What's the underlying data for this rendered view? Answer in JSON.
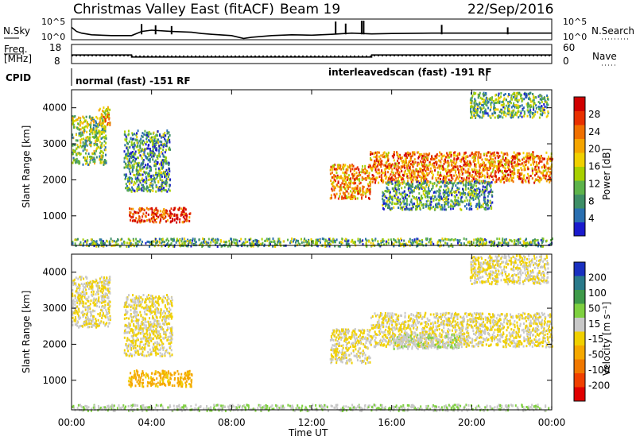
{
  "header": {
    "title": "Christmas Valley East (fitACF)",
    "beam": "Beam 19",
    "date": "22/Sep/2016"
  },
  "panels": {
    "nsky": {
      "left_label": "N.Sky",
      "left_ticks": [
        "10^5",
        "10^0"
      ],
      "right_label": "N.Search",
      "right_ticks": [
        "10^5",
        "10^0"
      ]
    },
    "freq": {
      "left_label_1": "Freq.",
      "left_label_2": "[MHz]",
      "left_ticks": [
        "18",
        "8"
      ],
      "right_label": "Nave",
      "right_ticks": [
        "60",
        "0"
      ]
    },
    "cpid": {
      "label": "CPID",
      "mode_1": "normal (fast) -151 RF",
      "mode_2": "interleavedscan (fast) -191 RF"
    }
  },
  "colors": {
    "power_scale": [
      "#1a1acd",
      "#2a6fb0",
      "#3e8e66",
      "#5db34a",
      "#a8d000",
      "#f0d000",
      "#f5a500",
      "#f07000",
      "#e83000",
      "#d00000"
    ],
    "velocity_scale": [
      "#e00000",
      "#f04000",
      "#f07800",
      "#f5a800",
      "#f0d000",
      "#c8c8c8",
      "#7ed040",
      "#3e9a4a",
      "#2a7a8a",
      "#1a30c0"
    ]
  },
  "chart_data": [
    {
      "type": "line",
      "name": "N.Sky",
      "x_unit": "hours UT",
      "x": [
        0,
        0.25,
        0.5,
        1,
        2,
        3,
        3.5,
        4,
        5,
        6,
        6.5,
        7,
        8,
        8.6,
        9,
        10,
        11,
        12,
        13,
        14,
        15,
        16,
        18,
        20,
        22,
        24
      ],
      "y_log10": [
        3.0,
        2.0,
        1.6,
        1.2,
        1.0,
        1.0,
        2.0,
        2.3,
        2.0,
        1.8,
        1.5,
        1.3,
        1.0,
        0.3,
        0.6,
        1.0,
        1.2,
        1.1,
        1.3,
        1.6,
        1.4,
        1.5,
        1.6,
        1.6,
        1.6,
        1.6
      ],
      "ylim": [
        0,
        5
      ]
    },
    {
      "type": "line",
      "name": "Freq.",
      "x": [
        0,
        3,
        3,
        15,
        15,
        24
      ],
      "y": [
        12.5,
        12.5,
        11.4,
        11.4,
        12.5,
        12.5
      ],
      "ylim": [
        8,
        18
      ]
    },
    {
      "type": "line",
      "name": "Nave",
      "x": [
        0,
        24
      ],
      "y": [
        24,
        24
      ],
      "ylim": [
        0,
        60
      ]
    },
    {
      "type": "scatter",
      "panel": "power",
      "xlabel": "",
      "ylabel": "Slant Range [km]",
      "x_ticks": [
        "00:00",
        "04:00",
        "08:00",
        "12:00",
        "16:00",
        "20:00",
        "00:00"
      ],
      "y_ticks": [
        1000,
        2000,
        3000,
        4000
      ],
      "xlim": [
        0,
        24
      ],
      "ylim": [
        180,
        4500
      ],
      "colorbar": {
        "label": "Power [dB]",
        "ticks": [
          "4",
          "8",
          "12",
          "16",
          "20",
          "24",
          "28"
        ],
        "range": [
          0,
          30
        ]
      },
      "regions": [
        {
          "t0": 0.0,
          "t1": 1.7,
          "r0": 2450,
          "r1": 3800,
          "value": 12
        },
        {
          "t0": 1.3,
          "t1": 1.9,
          "r0": 3500,
          "r1": 4050,
          "value": 18
        },
        {
          "t0": 2.6,
          "t1": 4.9,
          "r0": 1700,
          "r1": 3400,
          "value": 8
        },
        {
          "t0": 2.8,
          "t1": 5.9,
          "r0": 850,
          "r1": 1250,
          "value": 26
        },
        {
          "t0": 12.9,
          "t1": 14.9,
          "r0": 1500,
          "r1": 2450,
          "value": 20
        },
        {
          "t0": 14.9,
          "t1": 24.0,
          "r0": 1950,
          "r1": 2800,
          "value": 22
        },
        {
          "t0": 15.5,
          "t1": 21.0,
          "r0": 1200,
          "r1": 2000,
          "value": 8
        },
        {
          "t0": 19.9,
          "t1": 23.8,
          "r0": 3750,
          "r1": 4450,
          "value": 10
        },
        {
          "t0": 0.0,
          "t1": 24.0,
          "r0": 180,
          "r1": 400,
          "value": 10
        }
      ]
    },
    {
      "type": "scatter",
      "panel": "velocity",
      "xlabel": "Time UT",
      "ylabel": "Slant Range [km]",
      "x_ticks": [
        "00:00",
        "04:00",
        "08:00",
        "12:00",
        "16:00",
        "20:00",
        "00:00"
      ],
      "y_ticks": [
        1000,
        2000,
        3000,
        4000
      ],
      "xlim": [
        0,
        24
      ],
      "ylim": [
        180,
        4500
      ],
      "colorbar": {
        "label": "Velocity [m s^-1]",
        "ticks": [
          "-200",
          "-100",
          "-50",
          "-15",
          "15",
          "50",
          "100",
          "200"
        ],
        "range": [
          -250,
          250
        ]
      },
      "regions": [
        {
          "t0": 0.0,
          "t1": 1.9,
          "r0": 2500,
          "r1": 3900,
          "value": 0
        },
        {
          "t0": 2.6,
          "t1": 5.0,
          "r0": 1700,
          "r1": 3400,
          "value": 0
        },
        {
          "t0": 2.8,
          "t1": 6.0,
          "r0": 850,
          "r1": 1300,
          "value": -60
        },
        {
          "t0": 12.9,
          "t1": 14.9,
          "r0": 1500,
          "r1": 2450,
          "value": 0
        },
        {
          "t0": 14.9,
          "t1": 24.0,
          "r0": 1950,
          "r1": 2900,
          "value": 0
        },
        {
          "t0": 16.0,
          "t1": 19.5,
          "r0": 1900,
          "r1": 2300,
          "value": 40
        },
        {
          "t0": 19.9,
          "t1": 23.8,
          "r0": 3700,
          "r1": 4500,
          "value": 0
        },
        {
          "t0": 0.0,
          "t1": 24.0,
          "r0": 180,
          "r1": 350,
          "value": 45
        }
      ]
    }
  ],
  "axes": {
    "x_ticks": [
      "00:00",
      "04:00",
      "08:00",
      "12:00",
      "16:00",
      "20:00",
      "00:00"
    ],
    "x_label": "Time UT",
    "y_label": "Slant Range [km]",
    "y_ticks": [
      "1000",
      "2000",
      "3000",
      "4000"
    ],
    "power_label": "Power [dB]",
    "power_ticks": [
      "4",
      "8",
      "12",
      "16",
      "20",
      "24",
      "28"
    ],
    "velocity_label": "Velocity [m s⁻¹]",
    "velocity_ticks": [
      "200",
      "100",
      "50",
      "15",
      "-15",
      "-50",
      "-100",
      "-200"
    ]
  }
}
